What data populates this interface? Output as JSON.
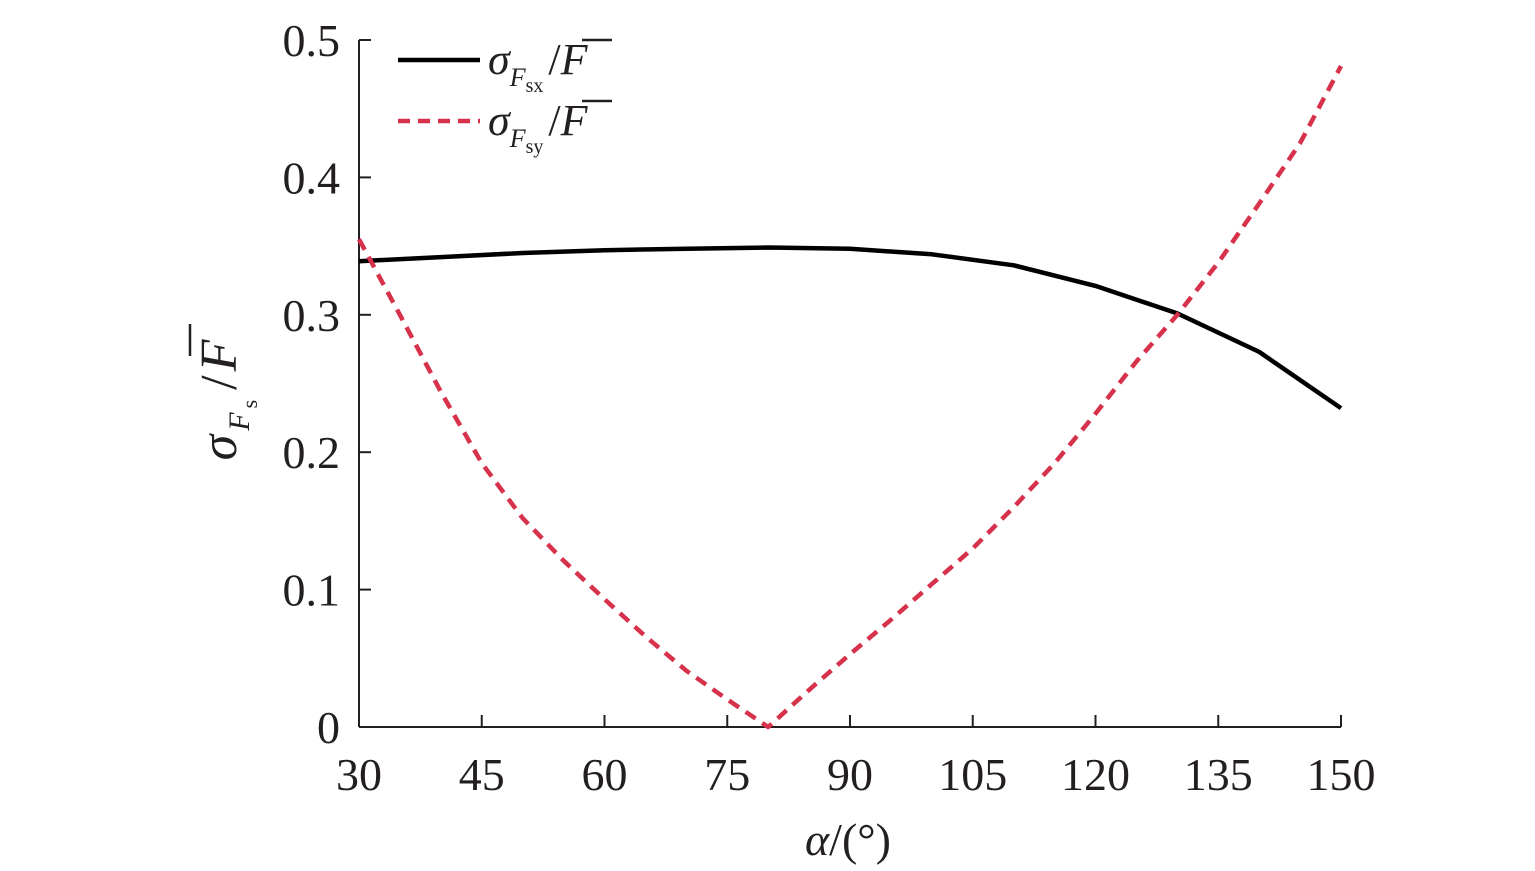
{
  "chart_data": {
    "type": "line",
    "xlabel": {
      "symbol": "α",
      "unit": "/(°)"
    },
    "ylabel": {
      "symbol": "σ",
      "sub": "F",
      "subsub": "s",
      "sep": "/",
      "over": "F"
    },
    "xlim": [
      30,
      150
    ],
    "ylim": [
      0,
      0.5
    ],
    "x_ticks": [
      30,
      45,
      60,
      75,
      90,
      105,
      120,
      135,
      150
    ],
    "y_ticks": [
      0,
      0.1,
      0.2,
      0.3,
      0.4,
      0.5
    ],
    "x_tick_labels": [
      "30",
      "45",
      "60",
      "75",
      "90",
      "105",
      "120",
      "135",
      "150"
    ],
    "y_tick_labels": [
      "0",
      "0.1",
      "0.2",
      "0.3",
      "0.4",
      "0.5"
    ],
    "grid": false,
    "legend_position": "top-left",
    "series": [
      {
        "legend": {
          "symbol": "σ",
          "sub": "F",
          "subsub": "sx",
          "sep": "/",
          "over": "F"
        },
        "color": "#000000",
        "dash": "solid",
        "x": [
          30,
          40,
          50,
          60,
          70,
          80,
          90,
          100,
          110,
          120,
          130,
          140,
          150
        ],
        "y": [
          0.339,
          0.342,
          0.345,
          0.347,
          0.348,
          0.349,
          0.348,
          0.344,
          0.336,
          0.321,
          0.301,
          0.273,
          0.232
        ]
      },
      {
        "legend": {
          "symbol": "σ",
          "sub": "F",
          "subsub": "sy",
          "sep": "/",
          "over": "F"
        },
        "color": "#d7324b",
        "dash": "dashed",
        "x": [
          30,
          35,
          40,
          45,
          50,
          55,
          60,
          65,
          70,
          75,
          80,
          85,
          90,
          95,
          100,
          105,
          110,
          115,
          120,
          125,
          130,
          135,
          140,
          145,
          150
        ],
        "y": [
          0.355,
          0.3,
          0.244,
          0.192,
          0.152,
          0.121,
          0.093,
          0.066,
          0.041,
          0.02,
          0.0,
          0.027,
          0.053,
          0.078,
          0.104,
          0.13,
          0.16,
          0.192,
          0.228,
          0.266,
          0.3,
          0.338,
          0.381,
          0.425,
          0.481
        ]
      }
    ]
  }
}
